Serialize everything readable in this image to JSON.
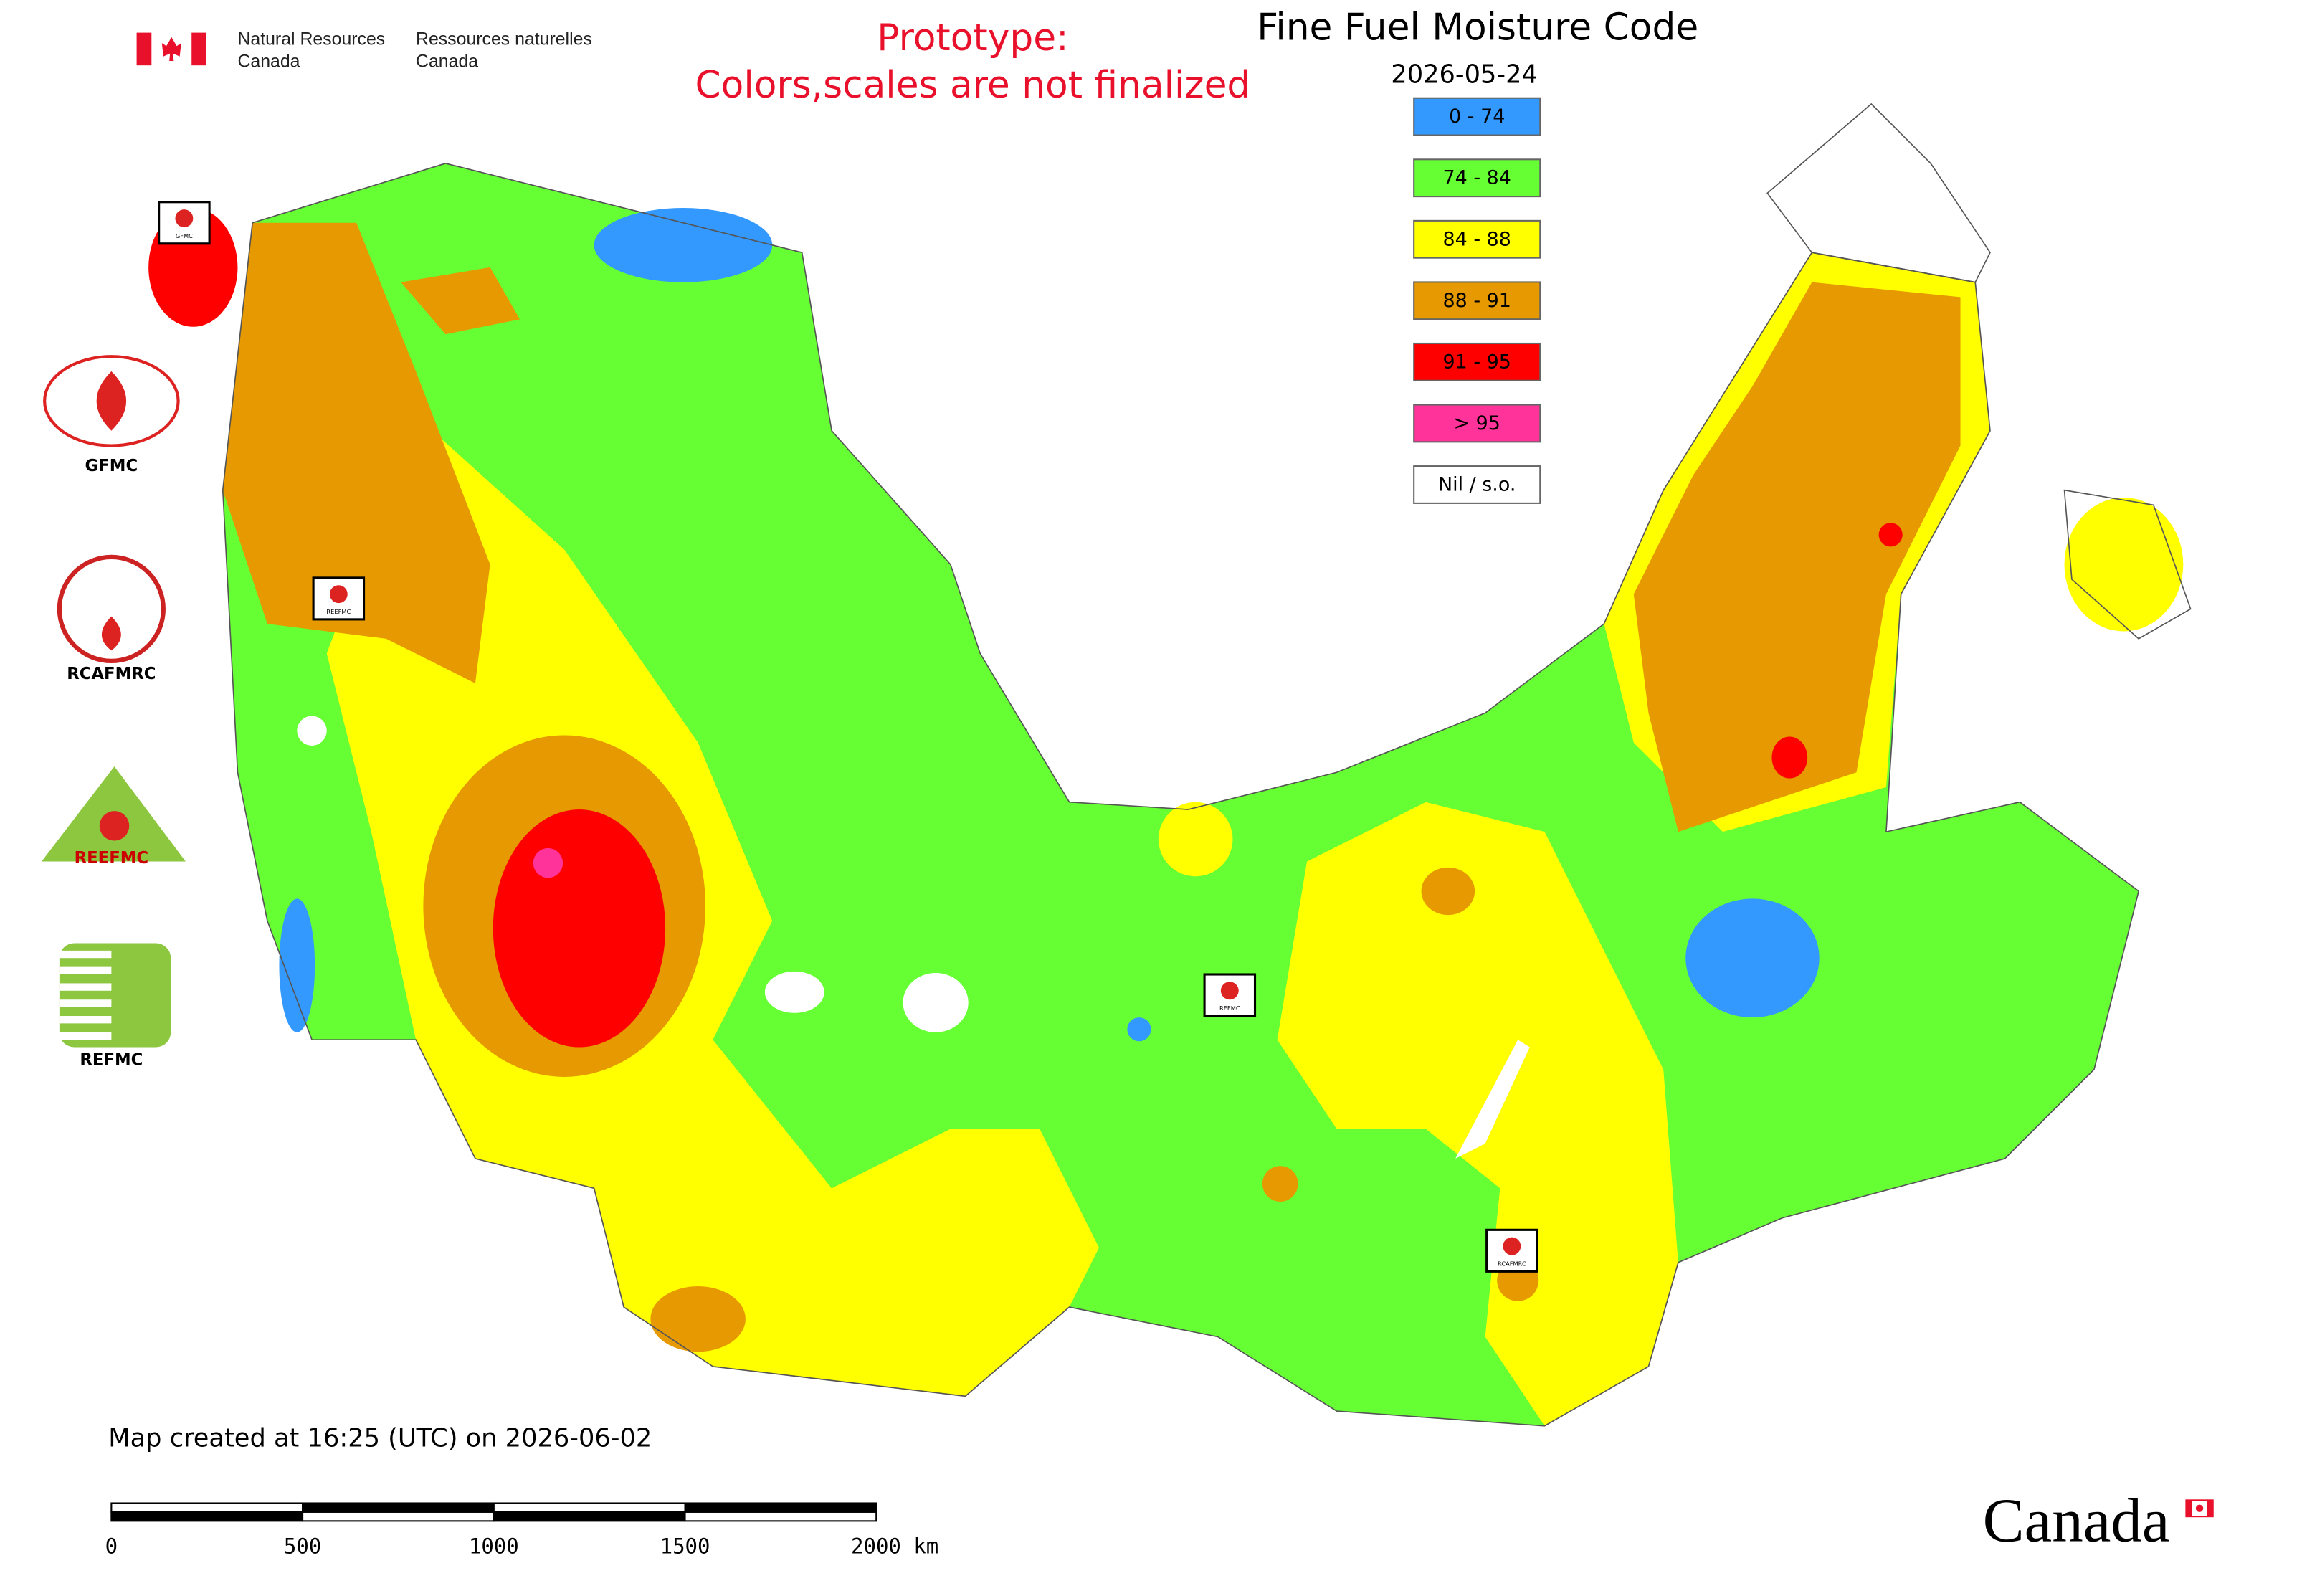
{
  "header": {
    "dept_en": [
      "Natural Resources",
      "Canada"
    ],
    "dept_fr": [
      "Ressources naturelles",
      "Canada"
    ]
  },
  "prototype_note": [
    "Prototype:",
    "Colors,scales are not finalized"
  ],
  "title": "Fine Fuel Moisture Code",
  "date": "2026-05-24",
  "legend": [
    {
      "label": "0 - 74",
      "color": "#3399ff"
    },
    {
      "label": "74 - 84",
      "color": "#66ff33"
    },
    {
      "label": "84 - 88",
      "color": "#ffff00"
    },
    {
      "label": "88 - 91",
      "color": "#e69900"
    },
    {
      "label": "91 - 95",
      "color": "#ff0000"
    },
    {
      "label": "> 95",
      "color": "#ff3399"
    },
    {
      "label": "Nil / s.o.",
      "color": "#ffffff"
    }
  ],
  "logos": [
    "GFMC",
    "RCAFMRC",
    "REEFMC",
    "REFMC"
  ],
  "map_badges": [
    "GFMC",
    "REEFMC",
    "REFMC",
    "RCAFMRC"
  ],
  "footer": "Map created at 16:25 (UTC) on 2026-06-02",
  "scale_bar": [
    "0",
    "500",
    "1000",
    "1500",
    "2000 km"
  ],
  "wordmark": "Canada"
}
